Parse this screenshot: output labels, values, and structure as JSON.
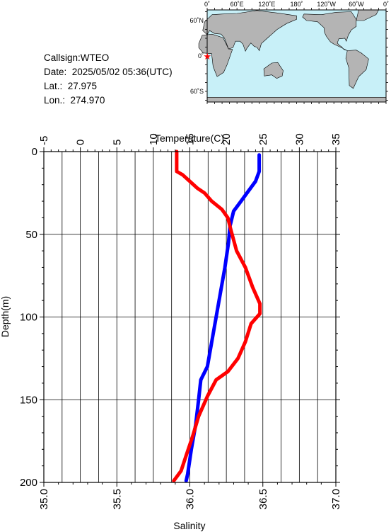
{
  "info": {
    "callsign": "Callsign:WTEO",
    "date": "Date:  2025/05/02 05:36(UTC)",
    "lat": "Lat.:  27.975",
    "lon": "Lon.:  274.970"
  },
  "map": {
    "lon_ticks": [
      "0˚",
      "60˚E",
      "120˚E",
      "180˚",
      "120˚W",
      "60˚W",
      "0˚"
    ],
    "lat_ticks": [
      "60˚N",
      "0˚",
      "60˚S"
    ],
    "ocean_color": "#c8f0f8",
    "land_color": "#b4b4b4",
    "station_color": "#ff0000"
  },
  "chart_data": {
    "type": "line",
    "ylabel": "Depth(m)",
    "y_ticks": [
      0,
      50,
      100,
      150,
      200
    ],
    "ylim": [
      0,
      200
    ],
    "y_inverted": true,
    "top_axis": {
      "label": "Temperature(C)",
      "ticks": [
        -5,
        0,
        5,
        10,
        15,
        20,
        25,
        30,
        35
      ],
      "range": [
        -5,
        35
      ]
    },
    "bottom_axis": {
      "label": "Salinity",
      "ticks": [
        "35.0",
        "35.5",
        "36.0",
        "36.5",
        "37.0"
      ],
      "range": [
        35.0,
        37.0
      ]
    },
    "grid": true,
    "series": [
      {
        "variable": "Temperature",
        "axis": "top",
        "color": "#0000ff",
        "points": [
          [
            24.5,
            2
          ],
          [
            24.5,
            12
          ],
          [
            24.0,
            18
          ],
          [
            23.0,
            24
          ],
          [
            22.0,
            30
          ],
          [
            21.0,
            36
          ],
          [
            20.5,
            45
          ],
          [
            20.3,
            55
          ],
          [
            19.8,
            70
          ],
          [
            19.2,
            85
          ],
          [
            18.6,
            100
          ],
          [
            18.0,
            115
          ],
          [
            17.4,
            130
          ],
          [
            16.5,
            138
          ],
          [
            16.2,
            150
          ],
          [
            15.8,
            165
          ],
          [
            15.2,
            180
          ],
          [
            14.7,
            195
          ],
          [
            14.5,
            199
          ]
        ]
      },
      {
        "variable": "Salinity",
        "axis": "bottom",
        "color": "#ff0000",
        "points": [
          [
            35.91,
            0
          ],
          [
            35.91,
            12
          ],
          [
            35.95,
            14
          ],
          [
            36.0,
            18
          ],
          [
            36.05,
            22
          ],
          [
            36.1,
            25
          ],
          [
            36.15,
            30
          ],
          [
            36.22,
            35
          ],
          [
            36.26,
            40
          ],
          [
            36.28,
            47
          ],
          [
            36.32,
            60
          ],
          [
            36.38,
            70
          ],
          [
            36.43,
            82
          ],
          [
            36.48,
            92
          ],
          [
            36.48,
            98
          ],
          [
            36.42,
            104
          ],
          [
            36.38,
            115
          ],
          [
            36.33,
            125
          ],
          [
            36.26,
            133
          ],
          [
            36.18,
            138
          ],
          [
            36.12,
            148
          ],
          [
            36.06,
            160
          ],
          [
            36.02,
            172
          ],
          [
            35.97,
            185
          ],
          [
            35.94,
            193
          ],
          [
            35.89,
            199
          ]
        ]
      }
    ]
  }
}
